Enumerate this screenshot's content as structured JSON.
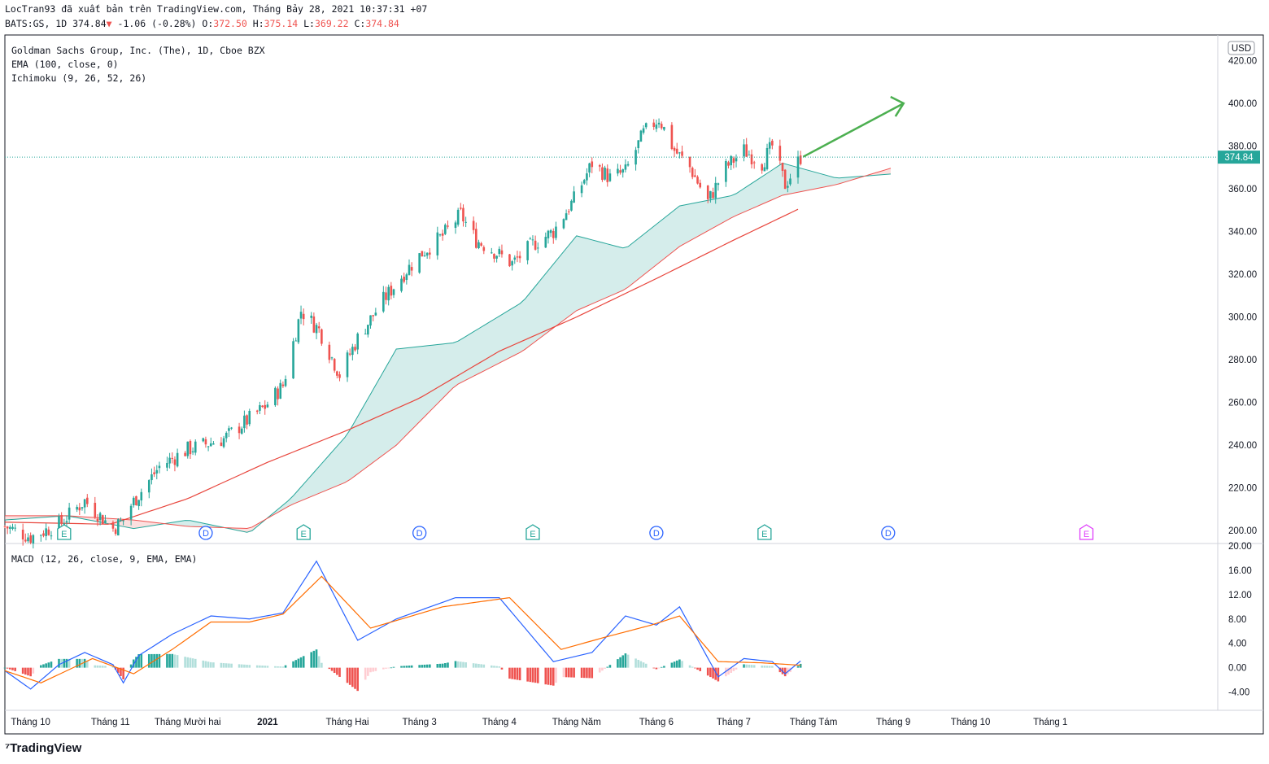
{
  "header": {
    "publish_line": "LocTran93 đã xuất bản trên TradingView.com, Tháng Bảy 28, 2021 10:37:31 +07",
    "symbol": "BATS:GS, 1D",
    "last": "374.84",
    "change": "-1.06",
    "change_pct": "(-0.28%)",
    "o_label": "O:",
    "o": "372.50",
    "h_label": "H:",
    "h": "375.14",
    "l_label": "L:",
    "l": "369.22",
    "c_label": "C:",
    "c": "374.84"
  },
  "legend": {
    "title": "Goldman Sachs Group, Inc. (The), 1D, Cboe BZX",
    "ema": "EMA (100, close, 0)",
    "ichimoku": "Ichimoku (9, 26, 52, 26)",
    "macd": "MACD (12, 26, close, 9, EMA, EMA)"
  },
  "currency": "USD",
  "price_tag": "374.84",
  "brand": "TradingView",
  "colors": {
    "up": "#26a69a",
    "down": "#ef5350",
    "ema": "#e8453c",
    "cloud_up": "#b2dfdb",
    "cloud_down": "#f7c6c5",
    "macd": "#2962ff",
    "signal": "#ff6d00",
    "arrow": "#4caf50",
    "tag": "#26a69a"
  },
  "chart_data": [
    {
      "type": "candlestick",
      "title": "Goldman Sachs Group, Inc. (The), 1D, Cboe BZX",
      "ylabel": "USD",
      "ylim": [
        194,
        432
      ],
      "yticks": [
        "420.00",
        "400.00",
        "380.00",
        "360.00",
        "340.00",
        "320.00",
        "300.00",
        "280.00",
        "260.00",
        "240.00",
        "220.00",
        "200.00"
      ],
      "xticks": [
        "Tháng 10",
        "Tháng 11",
        "Tháng Mười hai",
        "2021",
        "Tháng Hai",
        "Tháng 3",
        "Tháng 4",
        "Tháng Năm",
        "Tháng 6",
        "Tháng 7",
        "Tháng Tám",
        "Tháng 9",
        "Tháng 10",
        "Tháng 1"
      ],
      "xrange": [
        "2020-09-21",
        "2022-01-05"
      ],
      "last_price": 374.84,
      "close_path": [
        [
          "2020-09-21",
          202
        ],
        [
          "2020-10-01",
          197
        ],
        [
          "2020-10-12",
          203
        ],
        [
          "2020-10-22",
          214
        ],
        [
          "2020-11-02",
          201
        ],
        [
          "2020-11-06",
          205
        ],
        [
          "2020-11-09",
          212
        ],
        [
          "2020-11-20",
          230
        ],
        [
          "2020-12-01",
          238
        ],
        [
          "2020-12-15",
          243
        ],
        [
          "2020-12-31",
          258
        ],
        [
          "2021-01-07",
          268
        ],
        [
          "2021-01-14",
          303
        ],
        [
          "2021-01-21",
          294
        ],
        [
          "2021-01-29",
          273
        ],
        [
          "2021-02-05",
          290
        ],
        [
          "2021-02-15",
          308
        ],
        [
          "2021-02-24",
          322
        ],
        [
          "2021-03-02",
          330
        ],
        [
          "2021-03-10",
          338
        ],
        [
          "2021-03-17",
          348
        ],
        [
          "2021-03-23",
          336
        ],
        [
          "2021-03-31",
          330
        ],
        [
          "2021-04-06",
          325
        ],
        [
          "2021-04-14",
          334
        ],
        [
          "2021-04-22",
          340
        ],
        [
          "2021-04-30",
          355
        ],
        [
          "2021-05-07",
          372
        ],
        [
          "2021-05-14",
          365
        ],
        [
          "2021-05-20",
          368
        ],
        [
          "2021-05-27",
          386
        ],
        [
          "2021-06-02",
          393
        ],
        [
          "2021-06-08",
          378
        ],
        [
          "2021-06-14",
          370
        ],
        [
          "2021-06-21",
          354
        ],
        [
          "2021-06-28",
          370
        ],
        [
          "2021-07-05",
          378
        ],
        [
          "2021-07-12",
          372
        ],
        [
          "2021-07-16",
          380
        ],
        [
          "2021-07-21",
          362
        ],
        [
          "2021-07-23",
          366
        ],
        [
          "2021-07-27",
          374.84
        ]
      ],
      "ema100": [
        [
          "2020-09-21",
          204
        ],
        [
          "2020-11-01",
          203
        ],
        [
          "2020-12-01",
          215
        ],
        [
          "2021-01-01",
          232
        ],
        [
          "2021-02-01",
          247
        ],
        [
          "2021-03-01",
          262
        ],
        [
          "2021-04-01",
          284
        ],
        [
          "2021-05-01",
          300
        ],
        [
          "2021-06-01",
          318
        ],
        [
          "2021-07-01",
          336
        ],
        [
          "2021-07-27",
          351
        ]
      ],
      "ichimoku_span_a": [
        [
          "2020-09-21",
          205
        ],
        [
          "2020-10-15",
          207
        ],
        [
          "2020-11-10",
          201
        ],
        [
          "2020-12-01",
          205
        ],
        [
          "2020-12-25",
          199
        ],
        [
          "2021-01-10",
          215
        ],
        [
          "2021-02-01",
          245
        ],
        [
          "2021-02-20",
          285
        ],
        [
          "2021-03-15",
          288
        ],
        [
          "2021-04-10",
          307
        ],
        [
          "2021-05-01",
          338
        ],
        [
          "2021-05-20",
          332
        ],
        [
          "2021-06-10",
          352
        ],
        [
          "2021-07-01",
          357
        ],
        [
          "2021-07-20",
          372
        ],
        [
          "2021-08-10",
          365
        ],
        [
          "2021-09-01",
          367
        ]
      ],
      "ichimoku_span_b": [
        [
          "2020-09-21",
          207
        ],
        [
          "2020-10-15",
          207
        ],
        [
          "2020-11-10",
          205
        ],
        [
          "2020-12-01",
          202
        ],
        [
          "2020-12-25",
          201
        ],
        [
          "2021-01-10",
          212
        ],
        [
          "2021-02-01",
          223
        ],
        [
          "2021-02-20",
          240
        ],
        [
          "2021-03-15",
          268
        ],
        [
          "2021-04-10",
          284
        ],
        [
          "2021-05-01",
          303
        ],
        [
          "2021-05-20",
          313
        ],
        [
          "2021-06-10",
          333
        ],
        [
          "2021-07-01",
          347
        ],
        [
          "2021-07-20",
          357
        ],
        [
          "2021-08-10",
          362
        ],
        [
          "2021-09-01",
          370
        ]
      ],
      "annotation_arrow": {
        "from": [
          "2021-07-28",
          375
        ],
        "to": [
          "2021-09-05",
          400
        ]
      },
      "event_markers": [
        {
          "date": "2020-10-14",
          "label": "E"
        },
        {
          "date": "2020-12-08",
          "label": "D"
        },
        {
          "date": "2021-01-15",
          "label": "E"
        },
        {
          "date": "2021-03-01",
          "label": "D"
        },
        {
          "date": "2021-04-14",
          "label": "E"
        },
        {
          "date": "2021-06-01",
          "label": "D"
        },
        {
          "date": "2021-07-13",
          "label": "E"
        },
        {
          "date": "2021-08-30",
          "label": "D"
        },
        {
          "date": "2021-11-15",
          "label": "E"
        }
      ]
    },
    {
      "type": "line",
      "title": "MACD (12, 26, close, 9, EMA, EMA)",
      "ylim": [
        -7,
        20.4
      ],
      "yticks": [
        "20.00",
        "16.00",
        "12.00",
        "8.00",
        "4.00",
        "0.00",
        "-4.00"
      ],
      "series": [
        {
          "key": "macd",
          "values": [
            [
              "2020-09-21",
              -0.5
            ],
            [
              "2020-10-01",
              -3.5
            ],
            [
              "2020-10-12",
              0.5
            ],
            [
              "2020-10-22",
              2.5
            ],
            [
              "2020-11-02",
              0.5
            ],
            [
              "2020-11-06",
              -2.5
            ],
            [
              "2020-11-12",
              2
            ],
            [
              "2020-11-25",
              5.5
            ],
            [
              "2020-12-10",
              8.5
            ],
            [
              "2020-12-25",
              8
            ],
            [
              "2021-01-07",
              9
            ],
            [
              "2021-01-20",
              17.5
            ],
            [
              "2021-02-05",
              4.5
            ],
            [
              "2021-02-20",
              8
            ],
            [
              "2021-03-15",
              11.5
            ],
            [
              "2021-04-01",
              11.5
            ],
            [
              "2021-04-22",
              1
            ],
            [
              "2021-05-07",
              2.5
            ],
            [
              "2021-05-20",
              8.5
            ],
            [
              "2021-06-01",
              7
            ],
            [
              "2021-06-10",
              10
            ],
            [
              "2021-06-25",
              -1.5
            ],
            [
              "2021-07-05",
              1.5
            ],
            [
              "2021-07-16",
              1
            ],
            [
              "2021-07-21",
              -1
            ],
            [
              "2021-07-27",
              1.1
            ]
          ]
        },
        {
          "key": "signal",
          "values": [
            [
              "2020-09-21",
              -0.5
            ],
            [
              "2020-10-05",
              -2.5
            ],
            [
              "2020-10-25",
              1.5
            ],
            [
              "2020-11-10",
              -1
            ],
            [
              "2020-11-25",
              3
            ],
            [
              "2020-12-10",
              7.5
            ],
            [
              "2020-12-25",
              7.5
            ],
            [
              "2021-01-07",
              8.8
            ],
            [
              "2021-01-22",
              15
            ],
            [
              "2021-02-10",
              6.5
            ],
            [
              "2021-03-10",
              10
            ],
            [
              "2021-04-05",
              11.5
            ],
            [
              "2021-04-25",
              3
            ],
            [
              "2021-05-12",
              5
            ],
            [
              "2021-05-30",
              7
            ],
            [
              "2021-06-10",
              8.5
            ],
            [
              "2021-06-25",
              1
            ],
            [
              "2021-07-12",
              0.8
            ],
            [
              "2021-07-27",
              0.4
            ]
          ]
        }
      ],
      "histogram_note": "histogram = macd - signal"
    }
  ]
}
